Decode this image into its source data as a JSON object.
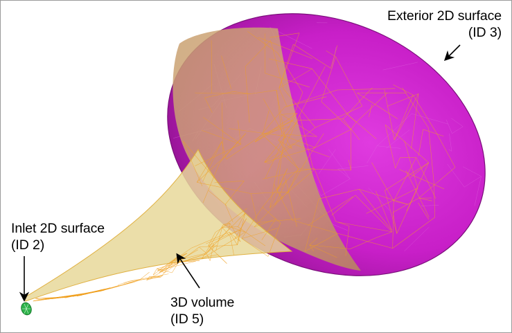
{
  "labels": {
    "exterior": {
      "line1": "Exterior 2D surface",
      "line2": "(ID 3)"
    },
    "inlet": {
      "line1": "Inlet 2D surface",
      "line2": "(ID 2)"
    },
    "volume": {
      "line1": "3D volume",
      "line2": "(ID 5)"
    }
  },
  "colors": {
    "exterior_surface": "#c81fc8",
    "exterior_surface_dark": "#8e128e",
    "volume_fill": "#e8d89a",
    "mesh_lines": "#f0a020",
    "inlet_surface": "#2db34a",
    "annotation": "#000000",
    "frame_border": "#9a9a9a"
  }
}
